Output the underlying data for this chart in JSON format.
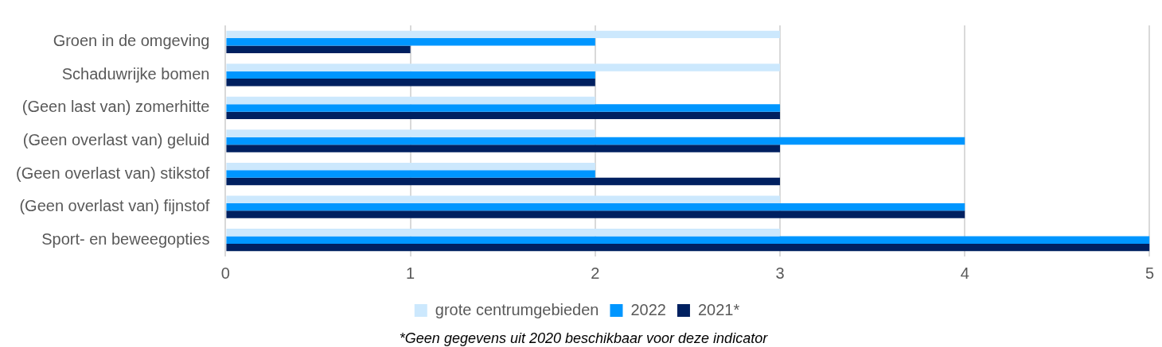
{
  "chart_data": {
    "type": "bar",
    "orientation": "horizontal",
    "categories": [
      "Groen in de omgeving",
      "Schaduwrijke bomen",
      "(Geen last van) zomerhitte",
      "(Geen overlast van) geluid",
      "(Geen overlast van) stikstof",
      "(Geen overlast van) fijnstof",
      "Sport- en beweegopties"
    ],
    "series": [
      {
        "name": "grote centrumgebieden",
        "color": "#cce8fd",
        "values": [
          3,
          3,
          2,
          2,
          2,
          3,
          3
        ]
      },
      {
        "name": "2022",
        "color": "#0096ff",
        "values": [
          2,
          2,
          3,
          4,
          2,
          4,
          5
        ]
      },
      {
        "name": "2021*",
        "color": "#002060",
        "values": [
          1,
          2,
          3,
          3,
          3,
          4,
          5
        ]
      }
    ],
    "xlim": [
      0,
      5
    ],
    "xticks": [
      0,
      1,
      2,
      3,
      4,
      5
    ],
    "grid": "x",
    "legend": "bottom",
    "annotations": [
      "*Geen gegevens uit 2020 beschikbaar voor deze indicator"
    ]
  }
}
